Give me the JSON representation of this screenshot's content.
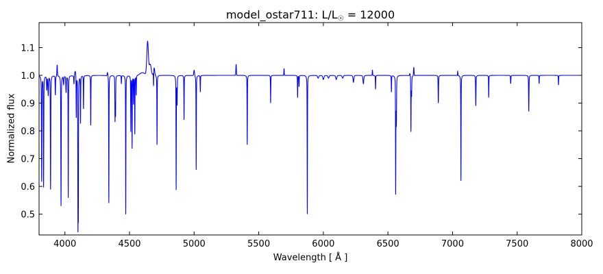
{
  "chart_data": {
    "type": "line",
    "title_prefix": "model_ostar711: L/L",
    "title_subscript": "☉",
    "title_suffix": " = 12000",
    "xlabel": "Wavelength [ Å ]",
    "ylabel": "Normalized flux",
    "xlim": [
      3800,
      8000
    ],
    "ylim": [
      0.425,
      1.19
    ],
    "xticks": [
      4000,
      4500,
      5000,
      5500,
      6000,
      6500,
      7000,
      7500,
      8000
    ],
    "yticks": [
      0.5,
      0.6,
      0.7,
      0.8,
      0.9,
      1.0,
      1.1
    ],
    "grid": false,
    "series_color": "#0000ff",
    "continuum": 1.0,
    "absorption_lines": [
      [
        3820,
        0.62,
        1.5
      ],
      [
        3835,
        0.6,
        1.5
      ],
      [
        3860,
        0.95,
        2
      ],
      [
        3871,
        0.93,
        2
      ],
      [
        3889,
        0.59,
        1.5
      ],
      [
        3926,
        0.93,
        1.5
      ],
      [
        3970,
        0.53,
        1.5
      ],
      [
        3990,
        0.97,
        2
      ],
      [
        4009,
        0.94,
        2
      ],
      [
        4026,
        0.56,
        1.2
      ],
      [
        4070,
        0.97,
        1.5
      ],
      [
        4088,
        0.85,
        1.2
      ],
      [
        4101,
        0.49,
        1.2
      ],
      [
        4104,
        0.53,
        1.2
      ],
      [
        4121,
        0.83,
        1.2
      ],
      [
        4144,
        0.88,
        1.2
      ],
      [
        4200,
        0.82,
        1.2
      ],
      [
        4340,
        0.54,
        1.2
      ],
      [
        4388,
        0.84,
        1.2
      ],
      [
        4392,
        0.86,
        1.2
      ],
      [
        4437,
        0.97,
        1.2
      ],
      [
        4471,
        0.5,
        1.2
      ],
      [
        4510,
        0.8,
        1.2
      ],
      [
        4520,
        0.74,
        1.2
      ],
      [
        4531,
        0.9,
        1.2
      ],
      [
        4541,
        0.79,
        1.2
      ],
      [
        4552,
        0.93,
        1.2
      ],
      [
        4686,
        0.94,
        1.2
      ],
      [
        4713,
        0.75,
        1.2
      ],
      [
        4861,
        0.59,
        1.2
      ],
      [
        4868,
        0.9,
        1.5
      ],
      [
        4922,
        0.84,
        1.2
      ],
      [
        5016,
        0.66,
        1.2
      ],
      [
        5048,
        0.94,
        1.2
      ],
      [
        5411,
        0.75,
        1.2
      ],
      [
        5592,
        0.9,
        1.2
      ],
      [
        5801,
        0.92,
        1.2
      ],
      [
        5812,
        0.96,
        1.2
      ],
      [
        5876,
        0.5,
        1.2
      ],
      [
        5960,
        0.99,
        4
      ],
      [
        6000,
        0.985,
        4
      ],
      [
        6040,
        0.99,
        4
      ],
      [
        6100,
        0.985,
        4
      ],
      [
        6150,
        0.99,
        4
      ],
      [
        6233,
        0.975,
        3
      ],
      [
        6310,
        0.97,
        3
      ],
      [
        6404,
        0.95,
        1.2
      ],
      [
        6527,
        0.94,
        1.2
      ],
      [
        6560,
        0.58,
        1.2
      ],
      [
        6565,
        0.83,
        1.5
      ],
      [
        6678,
        0.8,
        1.2
      ],
      [
        6683,
        0.93,
        1.5
      ],
      [
        6890,
        0.9,
        1.5
      ],
      [
        7065,
        0.62,
        1.2
      ],
      [
        7180,
        0.89,
        1.5
      ],
      [
        7280,
        0.92,
        1.2
      ],
      [
        7450,
        0.97,
        1.5
      ],
      [
        7590,
        0.87,
        1.5
      ],
      [
        7670,
        0.97,
        1.2
      ],
      [
        7820,
        0.965,
        1.2
      ]
    ],
    "emission_features": [
      [
        3940,
        1.04,
        2
      ],
      [
        4080,
        1.02,
        4
      ],
      [
        4330,
        1.015,
        3
      ],
      [
        4600,
        1.01,
        20
      ],
      [
        4640,
        1.12,
        6
      ],
      [
        4660,
        1.04,
        8
      ],
      [
        4690,
        1.03,
        5
      ],
      [
        5000,
        1.02,
        3
      ],
      [
        5325,
        1.04,
        2
      ],
      [
        5696,
        1.025,
        1.5
      ],
      [
        6380,
        1.02,
        1.5
      ],
      [
        6670,
        1.01,
        3
      ],
      [
        6700,
        1.03,
        2
      ],
      [
        7040,
        1.015,
        1.5
      ]
    ]
  }
}
